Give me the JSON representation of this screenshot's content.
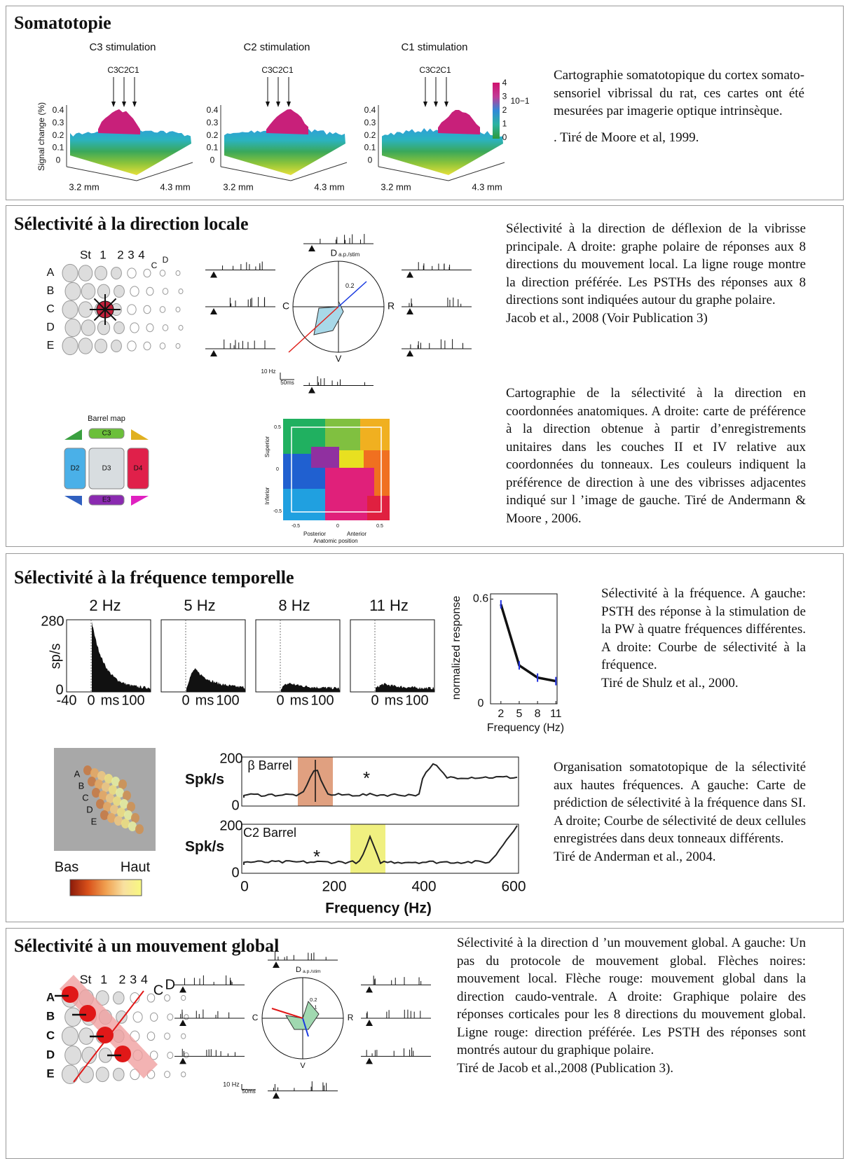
{
  "somatotopie": {
    "title": "Somatotopie",
    "panels": [
      "C3 stimulation",
      "C2 stimulation",
      "C1 stimulation"
    ],
    "whiskers": [
      "C3",
      "C2",
      "C1"
    ],
    "y_label": "Signal change (%)",
    "y_ticks": [
      "0.4",
      "0.3",
      "0.2",
      "0.1",
      "0"
    ],
    "x_labels": [
      "3.2 mm",
      "4.3 mm"
    ],
    "colorbar_ticks": [
      "4",
      "3",
      "2",
      "1",
      "0"
    ],
    "colorbar_unit": "10−1",
    "caption": [
      "Cartographie somatotopique du cortex somato-sensoriel vibrissal du rat, ces cartes ont été mesurées par imagerie optique intrinsèque.",
      ". Tiré de  Moore et al, 1999."
    ]
  },
  "direction_locale": {
    "title": "Sélectivité à la direction locale",
    "whisker_cols": [
      "St",
      "1",
      "2",
      "3",
      "4"
    ],
    "whisker_rows": [
      "A",
      "B",
      "C",
      "D",
      "E"
    ],
    "axes_small": [
      "C",
      "D"
    ],
    "polar": {
      "top": "D",
      "top_sub": "a.p./stim",
      "left": "C",
      "right": "R",
      "bottom": "V",
      "ring": "0.2"
    },
    "scale": [
      "10 Hz",
      "50ms"
    ],
    "barrel_map": {
      "title": "Barrel map",
      "cells": [
        "C3",
        "D2",
        "D3",
        "D4",
        "E3"
      ]
    },
    "anatomic": {
      "y_ticks": [
        "0.5",
        "0",
        "-0.5"
      ],
      "y_labels": [
        "Superior",
        "Inferior"
      ],
      "x_ticks": [
        "-0.5",
        "0",
        "0.5"
      ],
      "x_labels": [
        "Posterior",
        "Anterior"
      ],
      "x_title": "Anatomic position"
    },
    "caption1": [
      "Sélectivité à la direction de déflexion de la vibrisse principale. A droite: graphe polaire de réponses aux 8 directions du mouvement local. La ligne rouge montre la direction préférée. Les PSTHs des réponses aux 8 directions sont indiquées autour du graphe polaire.",
      "Jacob et al., 2008 (Voir Publication 3)"
    ],
    "caption2": [
      "Cartographie de la sélectivité à la direction en coordonnées anatomiques. A droite: carte de préférence à la direction obtenue à partir d’enregistrements unitaires dans les couches II et IV relative aux coordonnées du tonneaux. Les couleurs indiquent la préférence de direction à une des vibrisses adjacentes indiqué sur l ’image de gauche. Tiré de Andermann & Moore , 2006."
    ]
  },
  "frequence": {
    "title": "Sélectivité à la fréquence temporelle",
    "psth": {
      "panels": [
        "2 Hz",
        "5 Hz",
        "8 Hz",
        "11 Hz"
      ],
      "y_label": "sp/s",
      "y_ticks": [
        "280",
        "0"
      ],
      "x_first": "-40",
      "x_ticks": [
        "0",
        "ms",
        "100"
      ]
    },
    "tuning": {
      "y_label": "normalized response",
      "x_label": "Frequency (Hz)",
      "x": [
        2,
        5,
        8,
        11
      ],
      "values": [
        0.57,
        0.22,
        0.15,
        0.13
      ],
      "xlim": [
        0.3,
        11.2
      ],
      "ylim": [
        0,
        0.63
      ],
      "yticks": [
        0,
        0.6
      ],
      "xticks": [
        2,
        5,
        8,
        11
      ],
      "color": "#111111"
    },
    "caption1": [
      "Sélectivité à la fréquence. A gauche: PSTH des réponse à la stimulation de la PW à quatre fréquences différentes. A droite: Courbe de sélectivité à la fréquence.",
      "Tiré de Shulz et al., 2000."
    ],
    "map": {
      "rows": [
        "A",
        "B",
        "C",
        "D",
        "E"
      ],
      "low": "Bas",
      "high": "Haut"
    },
    "spectra": {
      "panels": [
        "β Barrel",
        "C2 Barrel"
      ],
      "y_label": "Spk/s",
      "y_ticks": [
        "200",
        "0"
      ],
      "x_ticks": [
        "0",
        "200",
        "400",
        "600"
      ],
      "x_label": "Frequency (Hz)",
      "marker": "*"
    },
    "caption2": [
      "Organisation somatotopique de la sélectivité aux hautes fréquences. A gauche: Carte de prédiction de sélectivité à la fréquence dans SI. A droite; Courbe de sélectivité de deux cellules enregistrées dans deux tonneaux différents.",
      "Tiré de Anderman et al., 2004."
    ]
  },
  "global": {
    "title": "Sélectivité à un mouvement global",
    "whisker_cols": [
      "St",
      "1",
      "2",
      "3",
      "4"
    ],
    "whisker_rows": [
      "A",
      "B",
      "C",
      "D",
      "E"
    ],
    "axes_small": [
      "C",
      "D"
    ],
    "polar": {
      "top": "D",
      "top_sub": "a.p./stim",
      "left": "C",
      "right": "R",
      "bottom": "V",
      "rings": [
        "0.2",
        "0.1"
      ]
    },
    "scale": [
      "10 Hz",
      "50ms"
    ],
    "caption": [
      "Sélectivité à la direction d ’un mouvement global. A gauche: Un pas du protocole de mouvement global. Flèches noires: mouvement local. Flèche rouge: mouvement global dans la direction caudo-ventrale. A droite: Graphique polaire des réponses corticales pour les 8 directions du mouvement global. Ligne rouge: direction préférée. Les PSTH des réponses sont montrés autour du graphique polaire.",
      "Tiré de Jacob et al.,2008 (Publication 3)."
    ]
  }
}
